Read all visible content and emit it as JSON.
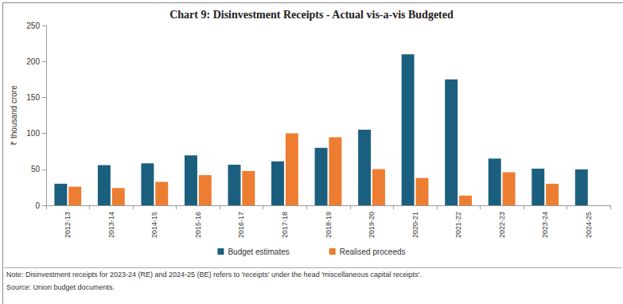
{
  "chart_data": {
    "type": "bar",
    "title": "Chart 9: Disinvestment Receipts - Actual vis-a-vis Budgeted",
    "y_label": "₹ thousand crore",
    "categories": [
      "2012-13",
      "2013-14",
      "2014-15",
      "2015-16",
      "2016-17",
      "2017-18",
      "2018-19",
      "2019-20",
      "2020-21",
      "2021-22",
      "2022-23",
      "2023-24",
      "2024-25"
    ],
    "series": [
      {
        "name": "Budget estimates",
        "color": "#1b5f7e",
        "values": [
          30,
          55.8,
          58.4,
          69.5,
          56.5,
          61,
          80,
          105,
          210,
          175,
          65,
          51,
          50
        ]
      },
      {
        "name": "Realised proceeds",
        "color": "#ed7d31",
        "values": [
          25.9,
          24,
          32.6,
          42,
          47.7,
          100,
          94.7,
          50.3,
          38,
          13.5,
          46,
          30,
          null
        ]
      }
    ],
    "ylim": [
      0,
      250
    ],
    "yticks": [
      0,
      50,
      100,
      150,
      200,
      250
    ],
    "grid": false,
    "legend": "bottom",
    "annotations": [
      "Note: Disinvestment receipts for 2023-24 (RE) and 2024-25 (BE) refers to 'receipts' under the head 'miscellaneous capital receipts'.",
      "Source: Union budget documents."
    ]
  }
}
